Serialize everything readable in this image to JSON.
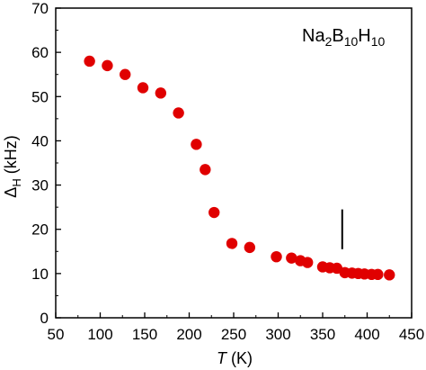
{
  "chart_data": {
    "type": "scatter",
    "title": "",
    "xlabel": {
      "italic": "T",
      "unit": "(K)"
    },
    "ylabel": {
      "base": "Δ",
      "subscript": "H",
      "unit": "(kHz)"
    },
    "xlim": [
      50,
      450
    ],
    "ylim": [
      0,
      70
    ],
    "xticks": [
      50,
      100,
      150,
      200,
      250,
      300,
      350,
      400,
      450
    ],
    "yticks": [
      0,
      10,
      20,
      30,
      40,
      50,
      60,
      70
    ],
    "grid": false,
    "series": [
      {
        "color": "#e00000",
        "points": [
          {
            "x": 88,
            "y": 58
          },
          {
            "x": 108,
            "y": 57
          },
          {
            "x": 128,
            "y": 55
          },
          {
            "x": 148,
            "y": 52
          },
          {
            "x": 168,
            "y": 50.8
          },
          {
            "x": 188,
            "y": 46.3
          },
          {
            "x": 208,
            "y": 39.2
          },
          {
            "x": 218,
            "y": 33.5
          },
          {
            "x": 228,
            "y": 23.8
          },
          {
            "x": 248,
            "y": 16.8
          },
          {
            "x": 268,
            "y": 15.9
          },
          {
            "x": 298,
            "y": 13.8
          },
          {
            "x": 315,
            "y": 13.5
          },
          {
            "x": 325,
            "y": 12.9
          },
          {
            "x": 333,
            "y": 12.5
          },
          {
            "x": 350,
            "y": 11.5
          },
          {
            "x": 358,
            "y": 11.3
          },
          {
            "x": 366,
            "y": 11.2
          },
          {
            "x": 375,
            "y": 10.2
          },
          {
            "x": 383,
            "y": 10.1
          },
          {
            "x": 390,
            "y": 10.0
          },
          {
            "x": 397,
            "y": 9.9
          },
          {
            "x": 405,
            "y": 9.8
          },
          {
            "x": 412,
            "y": 9.8
          },
          {
            "x": 425,
            "y": 9.7
          }
        ]
      }
    ],
    "annotations": {
      "compound": {
        "parts": [
          "Na",
          "2",
          "B",
          "10",
          "H",
          "10"
        ]
      },
      "marker_line": {
        "x": 372,
        "y_from": 15.5,
        "y_to": 24.5
      }
    }
  }
}
